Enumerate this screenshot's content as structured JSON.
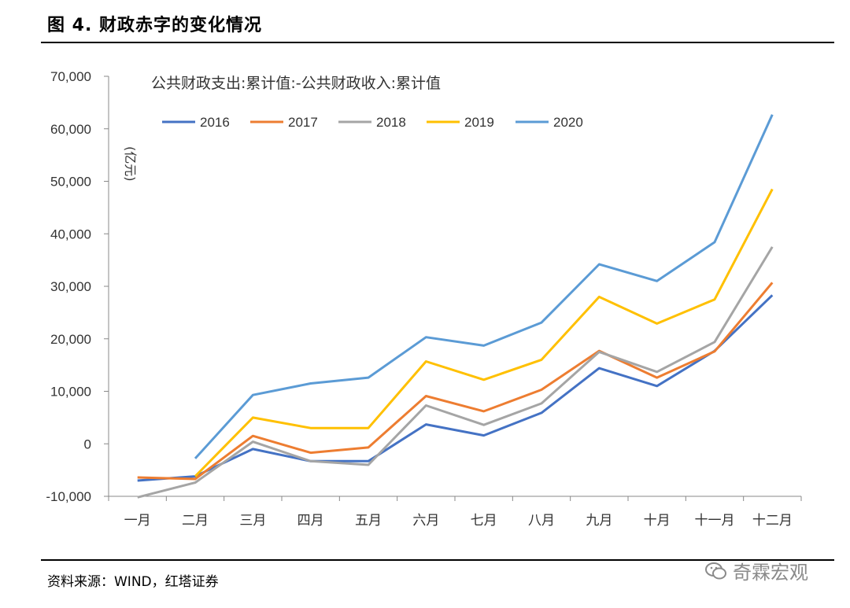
{
  "figure": {
    "title": "图 4. 财政赤字的变化情况",
    "source": "资料来源：WIND，红塔证券",
    "watermark": "奇霖宏观"
  },
  "chart_data": {
    "type": "line",
    "title": "公共财政支出:累计值:-公共财政收入:累计值",
    "ylabel": "(亿元)",
    "xlabel": "",
    "ylim": [
      -10000,
      70000
    ],
    "yticks": [
      -10000,
      0,
      10000,
      20000,
      30000,
      40000,
      50000,
      60000,
      70000
    ],
    "ytick_labels": [
      "-10,000",
      "0",
      "10,000",
      "20,000",
      "30,000",
      "40,000",
      "50,000",
      "60,000",
      "70,000"
    ],
    "categories": [
      "一月",
      "二月",
      "三月",
      "四月",
      "五月",
      "六月",
      "七月",
      "八月",
      "九月",
      "十月",
      "十一月",
      "十二月"
    ],
    "legend_position": "top-left",
    "grid": false,
    "series": [
      {
        "name": "2016",
        "color": "#4472C4",
        "values": [
          -7000,
          -6200,
          -1000,
          -3300,
          -3300,
          3700,
          1600,
          5900,
          14400,
          11000,
          17700,
          28300
        ]
      },
      {
        "name": "2017",
        "color": "#ED7D31",
        "values": [
          -6400,
          -6700,
          1500,
          -1700,
          -700,
          9100,
          6200,
          10300,
          17700,
          12600,
          17600,
          30700
        ]
      },
      {
        "name": "2018",
        "color": "#A5A5A5",
        "values": [
          -10200,
          -7400,
          400,
          -3300,
          -4000,
          7300,
          3600,
          7700,
          17500,
          13700,
          19400,
          37500
        ]
      },
      {
        "name": "2019",
        "color": "#FFC000",
        "values": [
          null,
          -6200,
          5000,
          3000,
          3000,
          15700,
          12200,
          16000,
          28000,
          22900,
          27500,
          48500
        ]
      },
      {
        "name": "2020",
        "color": "#5B9BD5",
        "values": [
          null,
          -2800,
          9300,
          11500,
          12600,
          20300,
          18700,
          23100,
          34200,
          31000,
          38400,
          62700
        ]
      }
    ]
  }
}
